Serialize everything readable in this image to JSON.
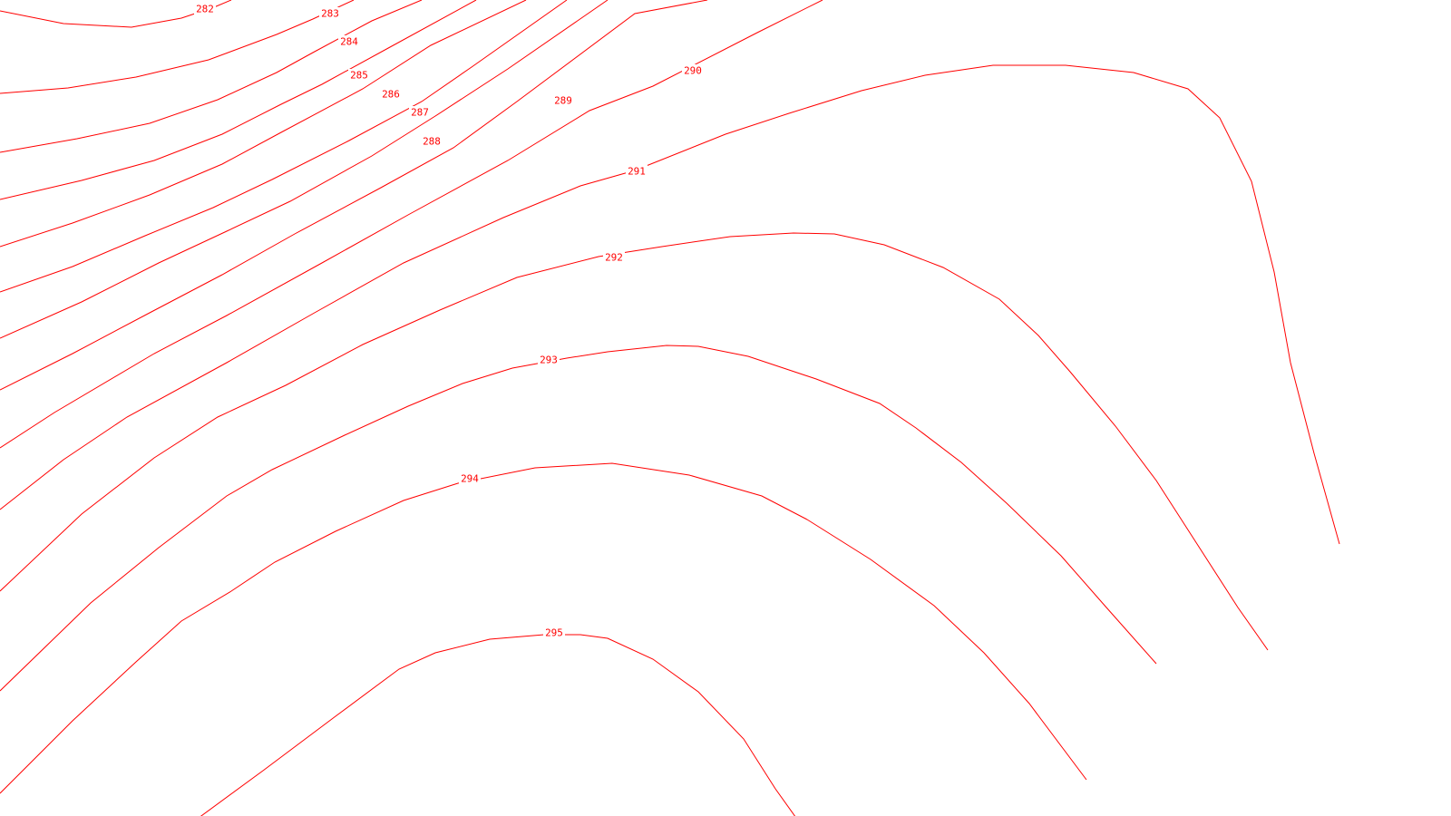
{
  "map": {
    "background_color": "#ffffff",
    "line_color": "#ff0000",
    "contours": [
      {
        "value": 282,
        "label": "282"
      },
      {
        "value": 283,
        "label": "283"
      },
      {
        "value": 284,
        "label": "284"
      },
      {
        "value": 285,
        "label": "285"
      },
      {
        "value": 286,
        "label": "286"
      },
      {
        "value": 287,
        "label": "287"
      },
      {
        "value": 288,
        "label": "288"
      },
      {
        "value": 289,
        "label": "289"
      },
      {
        "value": 290,
        "label": "290"
      },
      {
        "value": 291,
        "label": "291"
      },
      {
        "value": 292,
        "label": "292"
      },
      {
        "value": 293,
        "label": "293"
      },
      {
        "value": 294,
        "label": "294"
      },
      {
        "value": 295,
        "label": "295"
      }
    ]
  }
}
